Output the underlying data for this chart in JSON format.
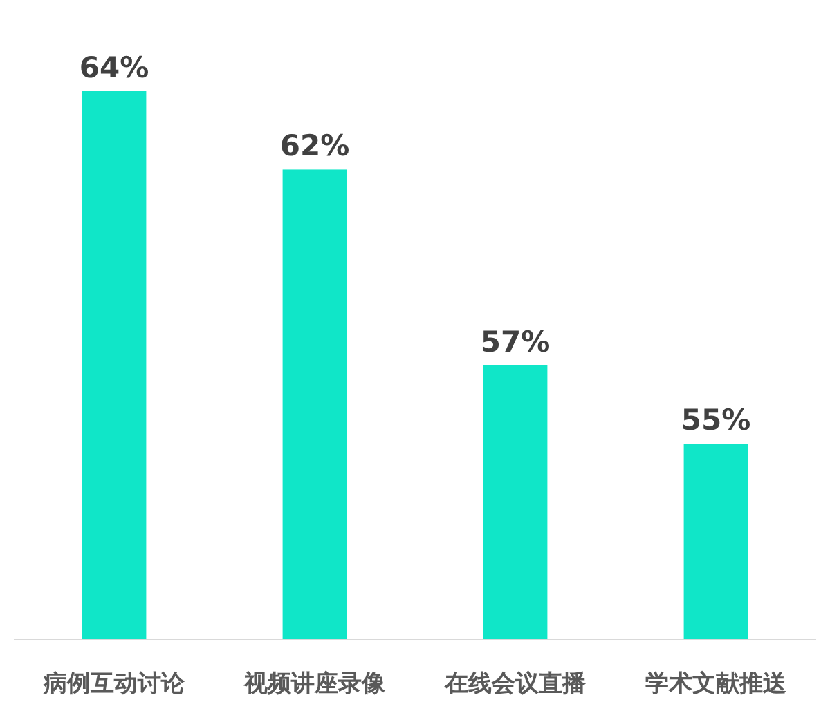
{
  "chart_data": {
    "type": "bar",
    "categories": [
      "病例互动讨论",
      "视频讲座录像",
      "在线会议直播",
      "学术文献推送"
    ],
    "values": [
      64,
      62,
      57,
      55
    ],
    "value_labels": [
      "64%",
      "62%",
      "57%",
      "55%"
    ],
    "color": "#10e6c8",
    "ylim": [
      50,
      64
    ],
    "tick_labels": "x"
  }
}
